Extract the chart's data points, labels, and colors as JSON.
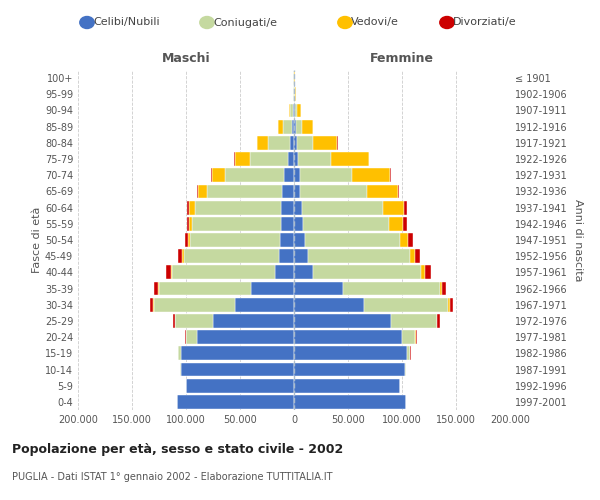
{
  "age_groups": [
    "0-4",
    "5-9",
    "10-14",
    "15-19",
    "20-24",
    "25-29",
    "30-34",
    "35-39",
    "40-44",
    "45-49",
    "50-54",
    "55-59",
    "60-64",
    "65-69",
    "70-74",
    "75-79",
    "80-84",
    "85-89",
    "90-94",
    "95-99",
    "100+"
  ],
  "birth_years": [
    "1997-2001",
    "1992-1996",
    "1987-1991",
    "1982-1986",
    "1977-1981",
    "1972-1976",
    "1967-1971",
    "1962-1966",
    "1957-1961",
    "1952-1956",
    "1947-1951",
    "1942-1946",
    "1937-1941",
    "1932-1936",
    "1927-1931",
    "1922-1926",
    "1917-1921",
    "1912-1916",
    "1907-1911",
    "1902-1906",
    "≤ 1901"
  ],
  "males": {
    "celibe": [
      108000,
      100000,
      105000,
      105000,
      90000,
      75000,
      55000,
      40000,
      18000,
      14000,
      13000,
      12000,
      12000,
      11000,
      9000,
      6000,
      4000,
      2000,
      1000,
      400,
      200
    ],
    "coniugato": [
      100,
      200,
      500,
      2000,
      10000,
      35000,
      75000,
      85000,
      95000,
      88000,
      83000,
      82000,
      80000,
      70000,
      55000,
      35000,
      20000,
      8000,
      2500,
      600,
      300
    ],
    "vedovo": [
      20,
      30,
      50,
      100,
      300,
      400,
      500,
      800,
      1200,
      1500,
      2000,
      3000,
      5000,
      8000,
      12000,
      14000,
      10000,
      4500,
      1200,
      300,
      100
    ],
    "divorziato": [
      10,
      20,
      50,
      200,
      800,
      1500,
      2500,
      3500,
      4000,
      3500,
      3000,
      2500,
      2000,
      1200,
      700,
      400,
      300,
      200,
      100,
      30,
      10
    ]
  },
  "females": {
    "nubile": [
      104000,
      98000,
      103000,
      105000,
      100000,
      90000,
      65000,
      45000,
      18000,
      13000,
      10000,
      8000,
      7000,
      6000,
      5500,
      4000,
      3000,
      1800,
      1000,
      400,
      200
    ],
    "coniugata": [
      100,
      200,
      600,
      2500,
      12000,
      42000,
      78000,
      90000,
      100000,
      94000,
      88000,
      80000,
      75000,
      62000,
      48000,
      30000,
      15000,
      6000,
      2000,
      500,
      200
    ],
    "vedova": [
      20,
      40,
      80,
      200,
      500,
      800,
      1200,
      2000,
      3500,
      5000,
      8000,
      13000,
      20000,
      28000,
      35000,
      35000,
      22000,
      10000,
      3500,
      800,
      300
    ],
    "divorziata": [
      10,
      30,
      100,
      400,
      1200,
      2000,
      3000,
      4000,
      5000,
      5000,
      4500,
      3200,
      2500,
      1500,
      1000,
      600,
      300,
      200,
      100,
      30,
      10
    ]
  },
  "colors": {
    "celibe": "#4472C4",
    "coniugato": "#C5D9A0",
    "vedovo": "#FFC000",
    "divorziato": "#CC0000"
  },
  "xlim": 200000,
  "title": "Popolazione per età, sesso e stato civile - 2002",
  "subtitle": "PUGLIA - Dati ISTAT 1° gennaio 2002 - Elaborazione TUTTITALIA.IT",
  "xlabel_left": "Maschi",
  "xlabel_right": "Femmine",
  "ylabel_left": "Fasce di età",
  "ylabel_right": "Anni di nascita",
  "legend_labels": [
    "Celibi/Nubili",
    "Coniugati/e",
    "Vedovi/e",
    "Divorziati/e"
  ],
  "xtick_labels": [
    "200.000",
    "150.000",
    "100.000",
    "50.000",
    "0",
    "50.000",
    "100.000",
    "150.000",
    "200.000"
  ],
  "xtick_values": [
    -200000,
    -150000,
    -100000,
    -50000,
    0,
    50000,
    100000,
    150000,
    200000
  ],
  "bg_color": "#ffffff",
  "grid_color": "#cccccc"
}
